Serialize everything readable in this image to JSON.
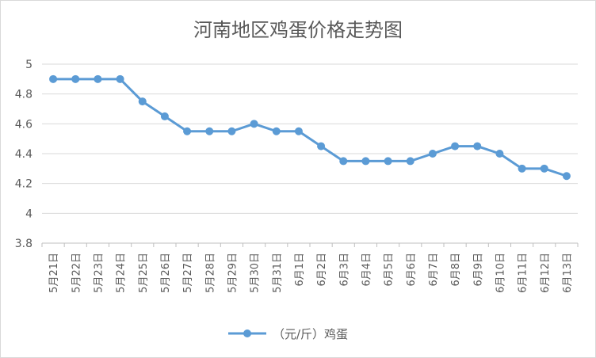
{
  "chart_data": {
    "type": "line",
    "title": "河南地区鸡蛋价格走势图",
    "xlabel": "",
    "ylabel": "",
    "categories": [
      "5月21日",
      "5月22日",
      "5月23日",
      "5月24日",
      "5月25日",
      "5月26日",
      "5月27日",
      "5月28日",
      "5月29日",
      "5月30日",
      "5月31日",
      "6月1日",
      "6月2日",
      "6月3日",
      "6月4日",
      "6月5日",
      "6月6日",
      "6月7日",
      "6月8日",
      "6月9日",
      "6月10日",
      "6月11日",
      "6月12日",
      "6月13日"
    ],
    "series": [
      {
        "name": "（元/斤）鸡蛋",
        "values": [
          4.9,
          4.9,
          4.9,
          4.9,
          4.75,
          4.65,
          4.55,
          4.55,
          4.55,
          4.6,
          4.55,
          4.55,
          4.45,
          4.35,
          4.35,
          4.35,
          4.35,
          4.4,
          4.45,
          4.45,
          4.4,
          4.3,
          4.3,
          4.25
        ],
        "color": "#5b9bd5"
      }
    ],
    "ylim": [
      3.8,
      5
    ],
    "yticks": [
      "3.8",
      "4",
      "4.2",
      "4.4",
      "4.6",
      "4.8",
      "5"
    ],
    "grid": true,
    "legend": "bottom"
  }
}
